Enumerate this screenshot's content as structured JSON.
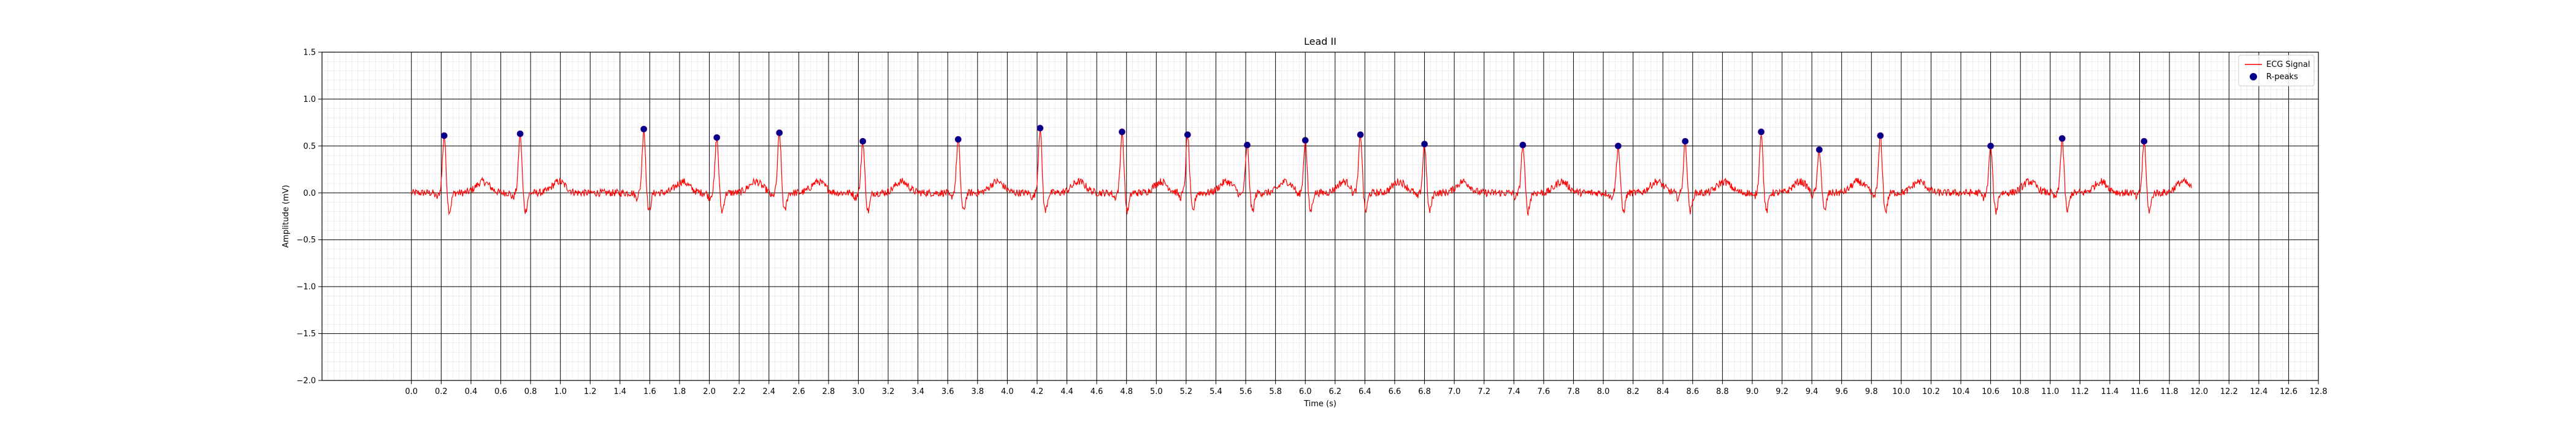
{
  "chart_data": {
    "type": "line",
    "title": "Lead II",
    "xlabel": "Time (s)",
    "ylabel": "Amplitude (mV)",
    "xlim": [
      -0.6,
      12.8
    ],
    "ylim": [
      -2.0,
      1.5
    ],
    "grid": true,
    "legend_position": "top-right",
    "x_ticks": [
      "0.0",
      "0.2",
      "0.4",
      "0.6",
      "0.8",
      "1.0",
      "1.2",
      "1.4",
      "1.6",
      "1.8",
      "2.0",
      "2.2",
      "2.4",
      "2.6",
      "2.8",
      "3.0",
      "3.2",
      "3.4",
      "3.6",
      "3.8",
      "4.0",
      "4.2",
      "4.4",
      "4.6",
      "4.8",
      "5.0",
      "5.2",
      "5.4",
      "5.6",
      "5.8",
      "6.0",
      "6.2",
      "6.4",
      "6.6",
      "6.8",
      "7.0",
      "7.2",
      "7.4",
      "7.6",
      "7.8",
      "8.0",
      "8.2",
      "8.4",
      "8.6",
      "8.8",
      "9.0",
      "9.2",
      "9.4",
      "9.6",
      "9.8",
      "10.0",
      "10.2",
      "10.4",
      "10.6",
      "10.8",
      "11.0",
      "11.2",
      "11.4",
      "11.6",
      "11.8",
      "12.0",
      "12.2",
      "12.4",
      "12.6",
      "12.8"
    ],
    "y_ticks": [
      "1.5",
      "1.0",
      "0.5",
      "0.0",
      "−0.5",
      "−1.0",
      "−1.5",
      "−2.0"
    ],
    "series": [
      {
        "name": "ECG Signal",
        "kind": "line",
        "color": "#ff0000",
        "x_start": 0.0,
        "x_end": 11.95,
        "baseline_noise_mv": 0.04
      },
      {
        "name": "R-peaks",
        "kind": "scatter",
        "color": "#00008b",
        "x": [
          0.22,
          0.73,
          1.56,
          2.05,
          2.47,
          3.03,
          3.67,
          4.22,
          4.77,
          5.21,
          5.61,
          6.0,
          6.37,
          6.8,
          7.46,
          8.1,
          8.55,
          9.06,
          9.45,
          9.86,
          10.6,
          11.08,
          11.63
        ],
        "y": [
          0.61,
          0.63,
          0.68,
          0.59,
          0.64,
          0.55,
          0.57,
          0.69,
          0.65,
          0.62,
          0.51,
          0.56,
          0.62,
          0.52,
          0.51,
          0.5,
          0.55,
          0.65,
          0.46,
          0.61,
          0.5,
          0.58,
          0.55
        ]
      }
    ]
  },
  "legend": {
    "items": [
      {
        "label": "ECG Signal",
        "marker": "line",
        "color": "#ff0000"
      },
      {
        "label": "R-peaks",
        "marker": "dot",
        "color": "#00008b"
      }
    ]
  }
}
